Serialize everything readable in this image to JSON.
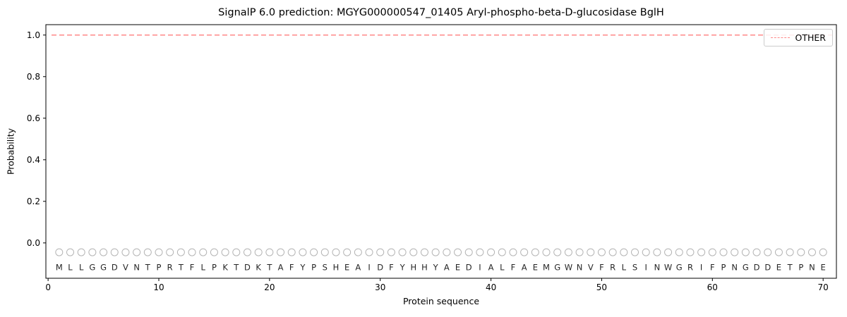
{
  "chart_data": {
    "type": "line",
    "title": "SignalP 6.0 prediction: MGYG000000547_01405 Aryl-phospho-beta-D-glucosidase BglH",
    "xlabel": "Protein sequence",
    "ylabel": "Probability",
    "xlim": [
      -0.2,
      71.2
    ],
    "ylim": [
      -0.17,
      1.05
    ],
    "x_ticks": [
      0,
      10,
      20,
      30,
      40,
      50,
      60,
      70
    ],
    "x_tick_labels": [
      "0",
      "10",
      "20",
      "30",
      "40",
      "50",
      "60",
      "70"
    ],
    "y_ticks": [
      0.0,
      0.2,
      0.4,
      0.6,
      0.8,
      1.0
    ],
    "y_tick_labels": [
      "0.0",
      "0.2",
      "0.4",
      "0.6",
      "0.8",
      "1.0"
    ],
    "series": [
      {
        "name": "OTHER",
        "color": "#ff8888",
        "style": "dashed",
        "x_range": [
          1,
          70
        ],
        "value": 1.0
      }
    ],
    "sequence": "MLLGGDVNTPRTFLPKTDKTAFYPSHEAIDFYHHYAEDIALFAEMGWNVFRLSINWGRIFPNGDDETPNE",
    "marker_y": -0.045,
    "letter_y": -0.118,
    "marker_color": "#b3b3b3",
    "letter_color": "#262626",
    "legend": {
      "position": "upper right",
      "entries": [
        "OTHER"
      ]
    }
  }
}
